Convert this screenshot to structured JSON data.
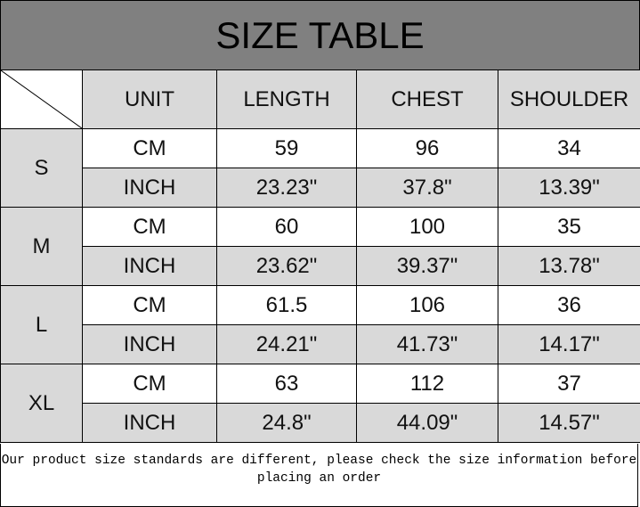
{
  "title": "SIZE TABLE",
  "headers": [
    "UNIT",
    "LENGTH",
    "CHEST",
    "SHOULDER"
  ],
  "sizes": [
    {
      "size": "S",
      "rows": [
        [
          "CM",
          "59",
          "96",
          "34"
        ],
        [
          "INCH",
          "23.23\"",
          "37.8\"",
          "13.39\""
        ]
      ]
    },
    {
      "size": "M",
      "rows": [
        [
          "CM",
          "60",
          "100",
          "35"
        ],
        [
          "INCH",
          "23.62\"",
          "39.37\"",
          "13.78\""
        ]
      ]
    },
    {
      "size": "L",
      "rows": [
        [
          "CM",
          "61.5",
          "106",
          "36"
        ],
        [
          "INCH",
          "24.21\"",
          "41.73\"",
          "14.17\""
        ]
      ]
    },
    {
      "size": "XL",
      "rows": [
        [
          "CM",
          "63",
          "112",
          "37"
        ],
        [
          "INCH",
          "24.8\"",
          "44.09\"",
          "14.57\""
        ]
      ]
    }
  ],
  "note": "Our product size standards are different, please check the size information before placing an order"
}
